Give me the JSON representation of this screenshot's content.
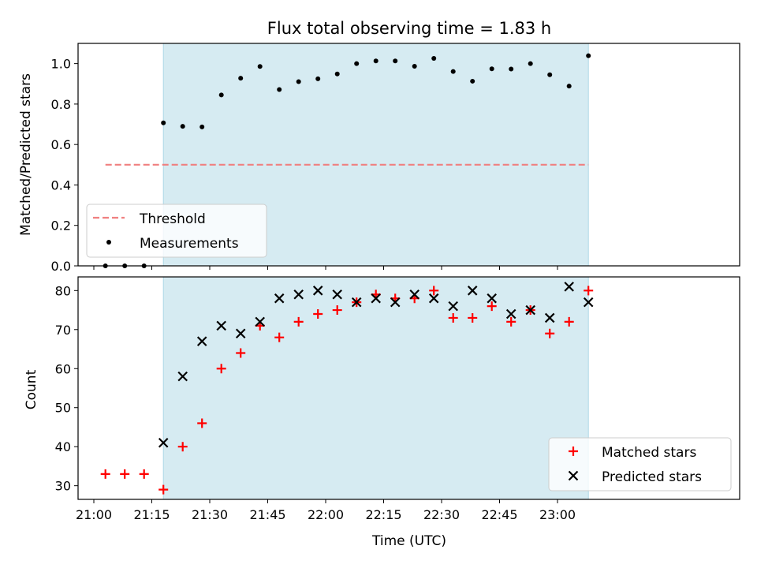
{
  "chart_data": [
    {
      "type": "scatter",
      "title": "Flux total observing time = 1.83 h",
      "xlabel": "",
      "ylabel": "Matched/Predicted stars",
      "ylim": [
        0.0,
        1.1
      ],
      "yticks": [
        "0.0",
        "0.2",
        "0.4",
        "0.6",
        "0.8",
        "1.0"
      ],
      "x": [
        "21:03",
        "21:08",
        "21:13",
        "21:18",
        "21:23",
        "21:28",
        "21:33",
        "21:38",
        "21:43",
        "21:48",
        "21:53",
        "21:58",
        "22:03",
        "22:08",
        "22:13",
        "22:18",
        "22:23",
        "22:28",
        "22:33",
        "22:38",
        "22:43",
        "22:48",
        "22:53",
        "22:58",
        "23:03",
        "23:08"
      ],
      "shaded_span": [
        "21:18",
        "23:08"
      ],
      "shade_color": "#add8e6",
      "threshold": {
        "name": "Threshold",
        "value": 0.5,
        "from": "21:03",
        "to": "23:08",
        "color": "#f08080"
      },
      "series": [
        {
          "name": "Measurements",
          "color": "#000000",
          "values": [
            0.0,
            0.0,
            0.0,
            0.707,
            0.69,
            0.687,
            0.845,
            0.928,
            0.986,
            0.872,
            0.911,
            0.925,
            0.949,
            1.0,
            1.013,
            1.013,
            0.987,
            1.026,
            0.961,
            0.913,
            0.974,
            0.973,
            1.0,
            0.945,
            0.889,
            1.039
          ]
        }
      ],
      "legend": "lower-left"
    },
    {
      "type": "scatter",
      "title": "",
      "xlabel": "Time (UTC)",
      "ylabel": "Count",
      "ylim": [
        26.5,
        83.5
      ],
      "yticks": [
        "30",
        "40",
        "50",
        "60",
        "70",
        "80"
      ],
      "xticks": [
        "21:00",
        "21:15",
        "21:30",
        "21:45",
        "22:00",
        "22:15",
        "22:30",
        "22:45",
        "23:00"
      ],
      "x": [
        "21:03",
        "21:08",
        "21:13",
        "21:18",
        "21:23",
        "21:28",
        "21:33",
        "21:38",
        "21:43",
        "21:48",
        "21:53",
        "21:58",
        "22:03",
        "22:08",
        "22:13",
        "22:18",
        "22:23",
        "22:28",
        "22:33",
        "22:38",
        "22:43",
        "22:48",
        "22:53",
        "22:58",
        "23:03",
        "23:08"
      ],
      "shaded_span": [
        "21:18",
        "23:08"
      ],
      "series": [
        {
          "name": "Matched stars",
          "marker": "plus",
          "color": "#ff0000",
          "values": [
            33,
            33,
            33,
            29,
            40,
            46,
            60,
            64,
            71,
            68,
            72,
            74,
            75,
            77,
            79,
            78,
            78,
            80,
            73,
            73,
            76,
            72,
            75,
            69,
            72,
            80
          ]
        },
        {
          "name": "Predicted stars",
          "marker": "x",
          "color": "#000000",
          "values": [
            null,
            null,
            null,
            41,
            58,
            67,
            71,
            69,
            72,
            78,
            79,
            80,
            79,
            77,
            78,
            77,
            79,
            78,
            76,
            80,
            78,
            74,
            75,
            73,
            81,
            77
          ]
        }
      ],
      "legend": "lower-right"
    }
  ]
}
